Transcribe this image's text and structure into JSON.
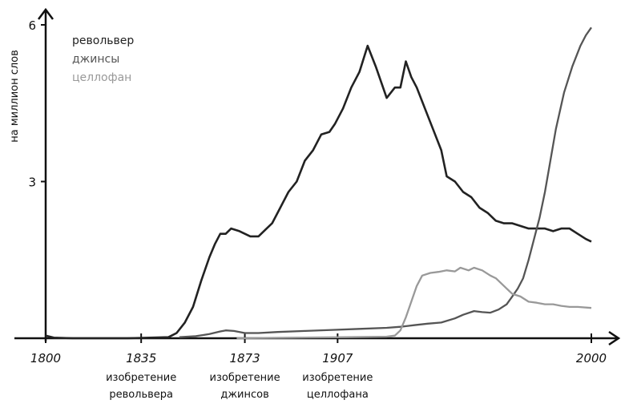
{
  "chart_data": {
    "type": "line",
    "title": "",
    "xlabel": "",
    "ylabel": "на миллион слов",
    "xlim": [
      1800,
      2000
    ],
    "ylim": [
      0,
      6
    ],
    "grid": false,
    "legend_placement": "top-left",
    "x_ticks": [
      {
        "value": 1800,
        "label": "1800",
        "note": ""
      },
      {
        "value": 1835,
        "label": "1835",
        "note": "изобретение револьвера"
      },
      {
        "value": 1873,
        "label": "1873",
        "note": "изобретение джинсов"
      },
      {
        "value": 1907,
        "label": "1907",
        "note": "изобретение целлофана"
      },
      {
        "value": 2000,
        "label": "2000",
        "note": ""
      }
    ],
    "y_ticks": [
      {
        "value": 3,
        "label": "3"
      },
      {
        "value": 6,
        "label": "6"
      }
    ],
    "series": [
      {
        "name": "револьвер",
        "color": "#222222",
        "x": [
          1800,
          1803,
          1810,
          1830,
          1845,
          1848,
          1851,
          1854,
          1857,
          1860,
          1862,
          1864,
          1866,
          1868,
          1871,
          1873,
          1875,
          1878,
          1881,
          1883,
          1886,
          1889,
          1892,
          1895,
          1898,
          1901,
          1904,
          1906,
          1909,
          1912,
          1915,
          1918,
          1921,
          1925,
          1928,
          1930,
          1932,
          1934,
          1936,
          1939,
          1942,
          1945,
          1947,
          1950,
          1953,
          1956,
          1959,
          1962,
          1965,
          1968,
          1971,
          1974,
          1977,
          1980,
          1983,
          1986,
          1989,
          1992,
          1995,
          1998,
          2000
        ],
        "y": [
          0.05,
          0.01,
          0.0,
          0.0,
          0.02,
          0.1,
          0.3,
          0.6,
          1.1,
          1.55,
          1.8,
          2.0,
          2.0,
          2.1,
          2.05,
          2.0,
          1.95,
          1.95,
          2.1,
          2.2,
          2.5,
          2.8,
          3.0,
          3.4,
          3.6,
          3.9,
          3.95,
          4.1,
          4.4,
          4.8,
          5.1,
          5.6,
          5.2,
          4.6,
          4.8,
          4.8,
          5.3,
          5.0,
          4.8,
          4.4,
          4.0,
          3.6,
          3.1,
          3.0,
          2.8,
          2.7,
          2.5,
          2.4,
          2.25,
          2.2,
          2.2,
          2.15,
          2.1,
          2.1,
          2.1,
          2.05,
          2.1,
          2.1,
          2.0,
          1.9,
          1.85
        ]
      },
      {
        "name": "джинсы",
        "color": "#555555",
        "x": [
          1849,
          1855,
          1860,
          1864,
          1866,
          1869,
          1873,
          1878,
          1885,
          1895,
          1905,
          1915,
          1925,
          1930,
          1935,
          1940,
          1945,
          1950,
          1953,
          1957,
          1960,
          1963,
          1966,
          1969,
          1971,
          1973,
          1975,
          1977,
          1979,
          1981,
          1983,
          1985,
          1987,
          1990,
          1993,
          1996,
          1998,
          2000
        ],
        "y": [
          0.02,
          0.04,
          0.08,
          0.13,
          0.15,
          0.14,
          0.1,
          0.1,
          0.12,
          0.14,
          0.16,
          0.18,
          0.2,
          0.22,
          0.25,
          0.28,
          0.3,
          0.38,
          0.45,
          0.52,
          0.5,
          0.49,
          0.55,
          0.65,
          0.8,
          0.95,
          1.15,
          1.5,
          1.9,
          2.3,
          2.8,
          3.4,
          4.0,
          4.7,
          5.2,
          5.6,
          5.8,
          5.95
        ]
      },
      {
        "name": "целлофан",
        "color": "#999999",
        "x": [
          1870,
          1890,
          1910,
          1925,
          1928,
          1930,
          1932,
          1934,
          1936,
          1938,
          1941,
          1944,
          1947,
          1950,
          1952,
          1955,
          1957,
          1960,
          1963,
          1965,
          1967,
          1969,
          1971,
          1974,
          1977,
          1980,
          1983,
          1986,
          1989,
          1992,
          1995,
          2000
        ],
        "y": [
          0.0,
          0.01,
          0.02,
          0.03,
          0.05,
          0.15,
          0.4,
          0.7,
          1.0,
          1.2,
          1.25,
          1.27,
          1.3,
          1.28,
          1.35,
          1.3,
          1.35,
          1.3,
          1.2,
          1.15,
          1.05,
          0.95,
          0.85,
          0.8,
          0.7,
          0.68,
          0.65,
          0.65,
          0.62,
          0.6,
          0.6,
          0.58
        ]
      }
    ]
  }
}
